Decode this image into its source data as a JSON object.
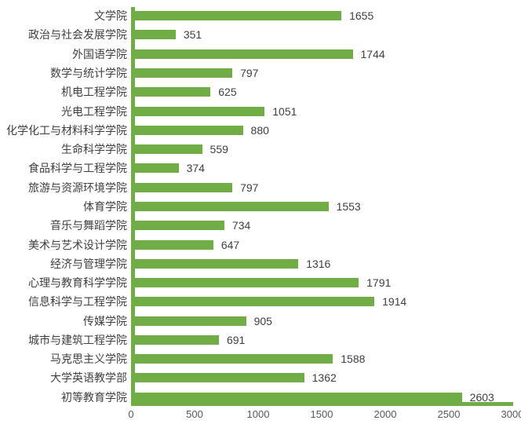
{
  "chart_data": {
    "type": "bar",
    "orientation": "horizontal",
    "title": "",
    "xlabel": "",
    "ylabel": "",
    "categories": [
      "文学院",
      "政治与社会发展学院",
      "外国语学院",
      "数学与统计学院",
      "机电工程学院",
      "光电工程学院",
      "化学化工与材料科学学院",
      "生命科学学院",
      "食品科学与工程学院",
      "旅游与资源环境学院",
      "体育学院",
      "音乐与舞蹈学院",
      "美术与艺术设计学院",
      "经济与管理学院",
      "心理与教育科学学院",
      "信息科学与工程学院",
      "传媒学院",
      "城市与建筑工程学院",
      "马克思主义学院",
      "大学英语教学部",
      "初等教育学院"
    ],
    "values": [
      1655,
      351,
      1744,
      797,
      625,
      1051,
      880,
      559,
      374,
      797,
      1553,
      734,
      647,
      1316,
      1791,
      1914,
      905,
      691,
      1588,
      1362,
      2603
    ],
    "data_labels_visible": true,
    "xlim": [
      0,
      3000
    ],
    "x_ticks": [
      0,
      500,
      1000,
      1500,
      2000,
      2500,
      3000
    ],
    "grid": "off",
    "legend": "none",
    "colors": {
      "bar": "#70AD47",
      "axis_line": "#70AD47",
      "category_label": "#3f3f3f",
      "value_label": "#404040",
      "tick_label": "#595959",
      "background": "#ffffff"
    }
  }
}
